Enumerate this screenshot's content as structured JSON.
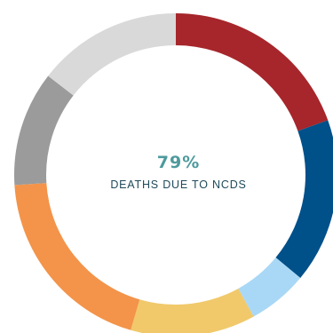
{
  "chart_data": {
    "type": "pie",
    "variant": "donut",
    "title": "",
    "center": {
      "value": "79%",
      "label": "DEATHS DUE TO NCDS"
    },
    "slices": [
      {
        "value": 19.5,
        "color": "#a6262b"
      },
      {
        "value": 16.5,
        "color": "#00508a"
      },
      {
        "value": 6.0,
        "color": "#a9d8f6"
      },
      {
        "value": 12.5,
        "color": "#f1c96b"
      },
      {
        "value": 19.5,
        "color": "#f3944a"
      },
      {
        "value": 11.5,
        "color": "#9b9b9b"
      },
      {
        "value": 14.5,
        "color": "#d9d9d9"
      }
    ]
  }
}
